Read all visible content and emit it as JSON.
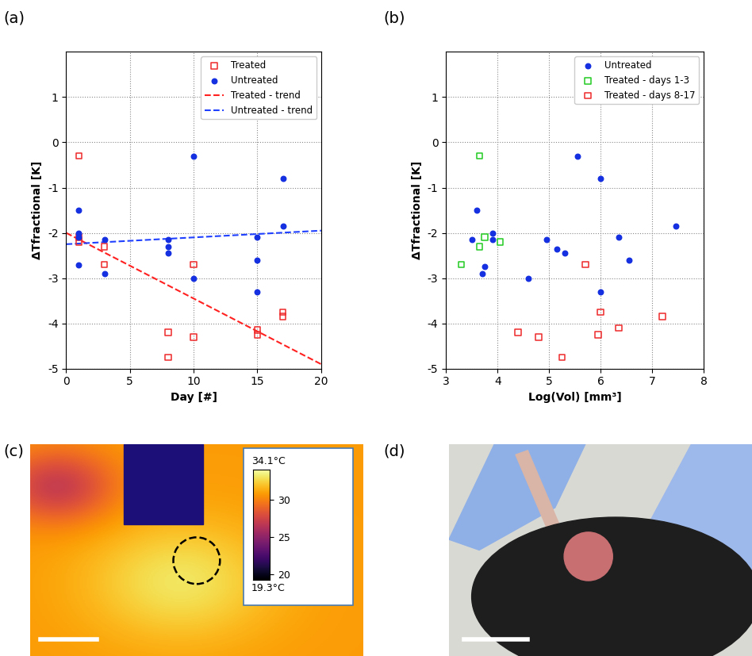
{
  "chart_data": [
    {
      "label": "(a)",
      "type": "scatter",
      "x_label": "Day [#]",
      "y_label": "ΔTfractional [K]",
      "xlim": [
        0,
        20
      ],
      "xticks": [
        0,
        5,
        10,
        15,
        20
      ],
      "ylim": [
        -5,
        2
      ],
      "yticks": [
        -5,
        -4,
        -3,
        -2,
        -1,
        0,
        1
      ],
      "grid": true,
      "legend": "upper right",
      "series": [
        {
          "name": "Treated",
          "color": "#ee2a2a",
          "marker": "square",
          "x": [
            1,
            1,
            1,
            3,
            3,
            8,
            8,
            10,
            10,
            15,
            15,
            17,
            17
          ],
          "values": [
            -0.3,
            -2.1,
            -2.2,
            -2.3,
            -2.7,
            -4.2,
            -4.75,
            -2.7,
            -4.3,
            -4.15,
            -4.25,
            -3.75,
            -3.85
          ]
        },
        {
          "name": "Untreated",
          "color": "#1530e0",
          "marker": "circle",
          "x": [
            1,
            1,
            1,
            1,
            3,
            3,
            8,
            8,
            8,
            10,
            10,
            15,
            15,
            15,
            17,
            17
          ],
          "values": [
            -1.5,
            -2.0,
            -2.1,
            -2.7,
            -2.15,
            -2.9,
            -2.15,
            -2.3,
            -2.45,
            -0.3,
            -3.0,
            -2.1,
            -2.6,
            -3.3,
            -0.8,
            -1.85
          ]
        },
        {
          "name": "Treated - trend",
          "type": "line",
          "color": "#ff2020",
          "line_style": "dashed",
          "x": [
            0,
            20
          ],
          "values": [
            -2.0,
            -4.9
          ]
        },
        {
          "name": "Untreated - trend",
          "type": "line",
          "color": "#2040ff",
          "line_style": "dashed",
          "x": [
            0,
            20
          ],
          "values": [
            -2.25,
            -1.95
          ]
        }
      ]
    },
    {
      "label": "(b)",
      "type": "scatter",
      "x_label": "Log(Vol) [mm³]",
      "y_label": "ΔTfractional [K]",
      "xlim": [
        3,
        8
      ],
      "xticks": [
        3,
        4,
        5,
        6,
        7,
        8
      ],
      "ylim": [
        -5,
        2
      ],
      "yticks": [
        -5,
        -4,
        -3,
        -2,
        -1,
        0,
        1
      ],
      "grid": true,
      "legend": "upper right",
      "series": [
        {
          "name": "Untreated",
          "color": "#1530e0",
          "marker": "circle",
          "x": [
            3.5,
            3.6,
            3.7,
            3.75,
            3.9,
            3.9,
            4.6,
            4.95,
            5.15,
            5.3,
            5.55,
            6.0,
            6.0,
            6.35,
            6.55,
            7.45
          ],
          "values": [
            -2.15,
            -1.5,
            -2.9,
            -2.75,
            -2.0,
            -2.15,
            -3.0,
            -2.15,
            -2.35,
            -2.45,
            -0.3,
            -0.8,
            -3.3,
            -2.1,
            -2.6,
            -1.85
          ]
        },
        {
          "name": "Treated - days 1-3",
          "color": "#22cc22",
          "marker": "square",
          "x": [
            3.3,
            3.65,
            3.65,
            3.75,
            4.05
          ],
          "values": [
            -2.7,
            -0.3,
            -2.3,
            -2.1,
            -2.2
          ]
        },
        {
          "name": "Treated - days 8-17",
          "color": "#ee2a2a",
          "marker": "square",
          "x": [
            4.4,
            4.8,
            5.25,
            5.7,
            5.95,
            6.0,
            6.35,
            7.2
          ],
          "values": [
            -4.2,
            -4.3,
            -4.75,
            -2.7,
            -4.25,
            -3.75,
            -4.1,
            -3.85
          ]
        }
      ]
    }
  ],
  "images": [
    {
      "label": "(c)",
      "colorbar": {
        "range": [
          19.3,
          34.1
        ],
        "ticks": [
          20,
          25,
          30
        ],
        "max_label": "34.1°C",
        "min_label": "19.3°C"
      }
    },
    {
      "label": "(d)"
    }
  ]
}
